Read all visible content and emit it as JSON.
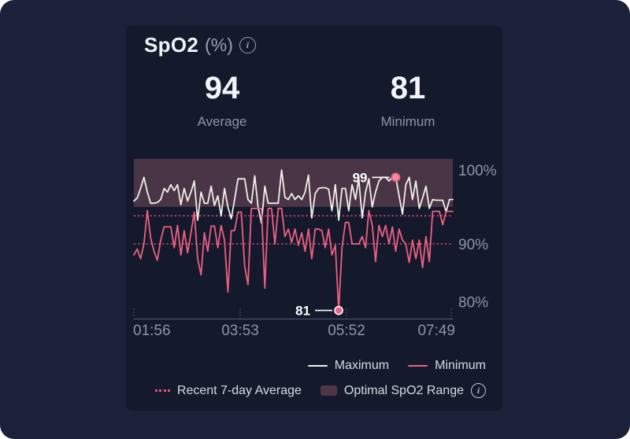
{
  "card": {
    "title": "SpO2",
    "title_unit": "(%)",
    "stats": {
      "average": {
        "value": "94",
        "label": "Average"
      },
      "minimum": {
        "value": "81",
        "label": "Minimum"
      }
    }
  },
  "legend": {
    "maximum_label": "Maximum",
    "minimum_label": "Minimum",
    "avg_label": "Recent 7-day Average",
    "optimal_label": "Optimal SpO2 Range",
    "info_glyph": "i"
  },
  "icons": {
    "title_info": "i"
  },
  "colors": {
    "outer_bg": "#1a2138",
    "card_bg": "#141a2c",
    "max_line": "#f2efe9",
    "min_line": "#ee5f81",
    "dotted_line": "#e0517c",
    "band_fill": "rgba(214,124,142,0.28)",
    "band_swatch": "#4f3749",
    "axis_line": "#4a5166",
    "tick_text": "#8d94a8",
    "annotation_text": "#ffffff",
    "dot_max_fill": "#f48ba3",
    "dot_min_fill": "#ee5f81"
  },
  "chart_data": {
    "type": "line",
    "title": "SpO2 (%) over night",
    "x_labels": [
      "01:56",
      "03:53",
      "05:52",
      "07:49"
    ],
    "y_ticks": [
      {
        "value": 100,
        "label": "100%"
      },
      {
        "value": 90,
        "label": "90%"
      },
      {
        "value": 80,
        "label": "80%"
      }
    ],
    "y_range": [
      80,
      101.5
    ],
    "optimal_range": {
      "low": 95,
      "high": 101.5
    },
    "avg_lines": [
      {
        "value": 93.8
      },
      {
        "value": 90.0
      }
    ],
    "series": [
      {
        "name": "Maximum",
        "annotation": {
          "index": 78,
          "label": "99"
        },
        "values": [
          95.8,
          96.2,
          97.5,
          99,
          97,
          95.5,
          95.5,
          95.6,
          96,
          97.5,
          97,
          98,
          97.2,
          98,
          95.3,
          97.5,
          95.8,
          97,
          98.5,
          93.2,
          97,
          95.5,
          95.5,
          97.8,
          95.2,
          96.5,
          93.8,
          97.5,
          95,
          93.4,
          96,
          98.8,
          98.8,
          98.8,
          96,
          95.5,
          99.2,
          95,
          92.8,
          97.8,
          95.5,
          95.5,
          95.5,
          95.5,
          100,
          96.3,
          96,
          96.8,
          96,
          96.5,
          96,
          97,
          99.3,
          93.5,
          96.8,
          97.5,
          97.6,
          97.6,
          97.4,
          94.5,
          98,
          93.2,
          97.5,
          97.5,
          94.5,
          98,
          96,
          98.8,
          93.5,
          97,
          98.8,
          95,
          97,
          98.5,
          99,
          99,
          98.5,
          99,
          99,
          96.5,
          94,
          98,
          99,
          96,
          98.5,
          94.8,
          96.2,
          97.8,
          94.8,
          96,
          95.9,
          95.9,
          95.9,
          94.3,
          96,
          96
        ]
      },
      {
        "name": "Minimum",
        "annotation": {
          "index": 61,
          "label": "81"
        },
        "values": [
          88.5,
          89.3,
          88,
          90,
          94.5,
          90.8,
          89,
          87.8,
          90.5,
          92.3,
          92.3,
          92.3,
          89.5,
          92.5,
          88.5,
          91.8,
          88.8,
          91.5,
          94.3,
          88,
          85.8,
          91.5,
          89,
          92.4,
          92.4,
          89.5,
          92.5,
          90.5,
          83.5,
          91.8,
          91.8,
          94.3,
          94.3,
          87,
          84.5,
          94.8,
          94.8,
          94.8,
          94.8,
          84,
          94.8,
          94.8,
          90,
          94.8,
          94.8,
          91,
          92,
          90.2,
          92,
          89.8,
          91.5,
          89,
          92,
          88,
          92,
          92,
          91.8,
          89.5,
          92,
          88.5,
          89.8,
          81,
          89.5,
          92.9,
          92.9,
          90,
          90,
          90,
          91,
          89.5,
          94.5,
          92.5,
          87.6,
          92.5,
          91,
          92.5,
          90,
          92.3,
          89,
          92,
          90.5,
          90,
          87.5,
          90.5,
          88,
          90.5,
          86.8,
          91,
          87.6,
          94.4,
          94.4,
          94.4,
          92.6,
          94.4,
          94.4,
          94.4
        ]
      }
    ]
  }
}
